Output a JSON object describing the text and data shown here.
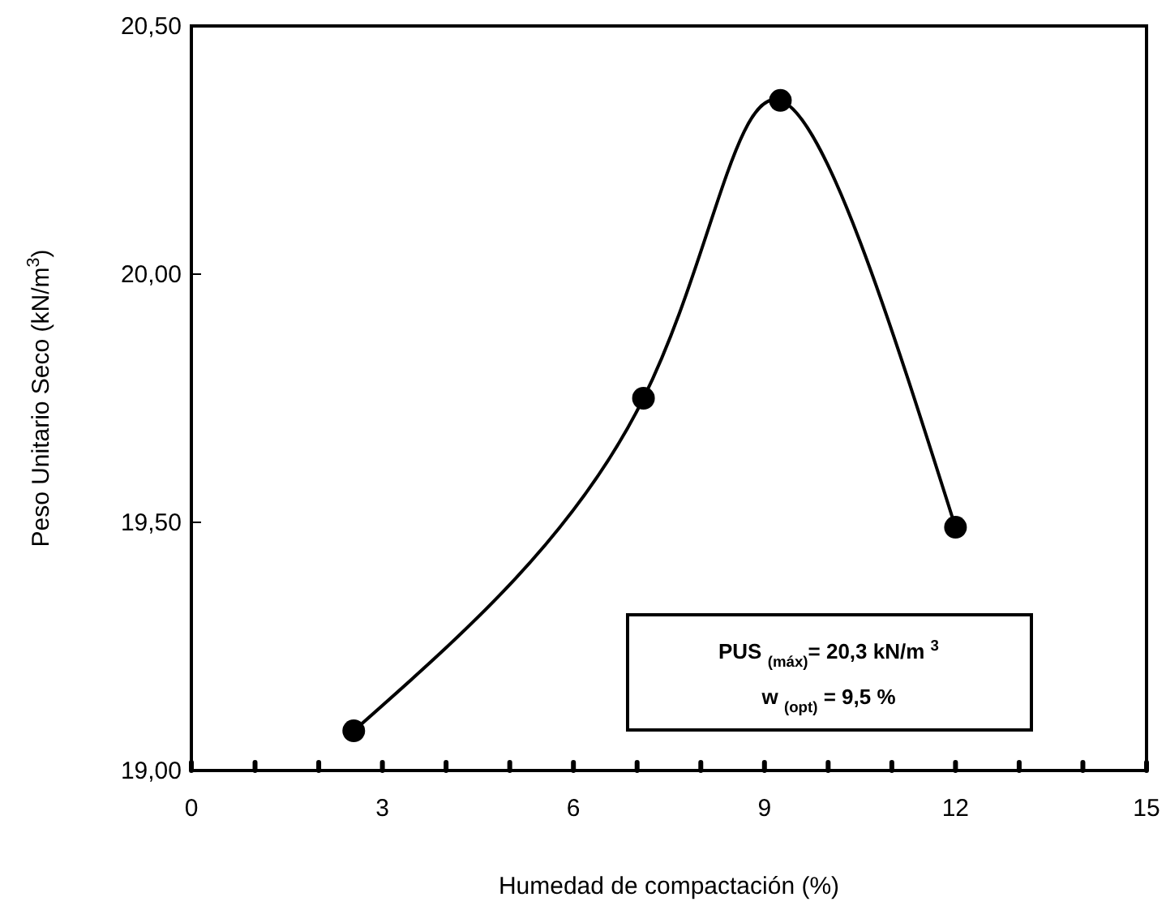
{
  "chart_data": {
    "type": "line",
    "xlabel": "Humedad de compactación  (%)",
    "ylabel": "Peso Unitario Seco (kN/m$^{3}$)",
    "x": [
      2.55,
      7.1,
      9.25,
      12.0
    ],
    "series": [
      {
        "color": "#000000",
        "values": [
          19.08,
          19.75,
          20.35,
          19.49
        ]
      }
    ],
    "xlim": [
      0,
      15
    ],
    "xticks": [
      0,
      {
        "value": 1,
        "label": null
      },
      {
        "value": 2,
        "label": null
      },
      3,
      {
        "value": 4,
        "label": null
      },
      {
        "value": 5,
        "label": null
      },
      6,
      {
        "value": 7,
        "label": null
      },
      {
        "value": 8,
        "label": null
      },
      9,
      {
        "value": 10,
        "label": null
      },
      {
        "value": 11,
        "label": null
      },
      12,
      {
        "value": 13,
        "label": null
      },
      {
        "value": 14,
        "label": null
      },
      15
    ],
    "ylim": [
      19,
      20.5
    ],
    "yticks": [
      {
        "value": 19,
        "label": "19,00"
      },
      {
        "value": 19.5,
        "label": "19,50"
      },
      {
        "value": 20,
        "label": "20,00"
      },
      {
        "value": 20.5,
        "label": "20,50"
      }
    ],
    "annotations": [
      "PUS $_{(máx)}$= 20,3 kN/m $^{3}$",
      "w $_{(opt)}$ = 9,5 %"
    ],
    "marker": "circle",
    "line_style": "solid",
    "grid": false
  }
}
